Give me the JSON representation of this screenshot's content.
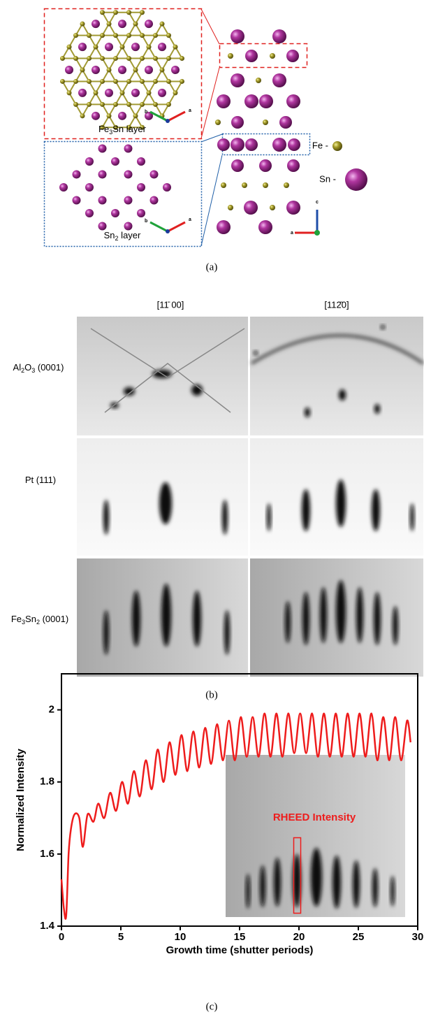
{
  "panel_a": {
    "caption": "(a)",
    "fe3sn_layer": [
      "Fe",
      "3",
      "Sn layer"
    ],
    "sn2_layer": [
      "Sn",
      "2",
      " layer"
    ],
    "legend": [
      "Fe -",
      "Sn -"
    ],
    "axes_top": [
      "b",
      "a"
    ],
    "axes_bottom": [
      "b",
      "a"
    ],
    "axes_side": [
      "c",
      "a"
    ]
  },
  "panel_b": {
    "caption": "(b)",
    "columns": [
      "[11̄ 00]",
      "[112̄0]"
    ],
    "rows": [
      [
        "Al",
        "2",
        "O",
        "3",
        " (0001)"
      ],
      [
        "Pt (111)"
      ],
      [
        "Fe",
        "3",
        "Sn",
        "2",
        " (0001)"
      ]
    ]
  },
  "panel_c": {
    "caption": "(c)"
  },
  "chart_data": {
    "type": "line",
    "xlabel": "Growth time (shutter periods)",
    "ylabel": "Normalized Intensity",
    "annotation": "RHEED Intensity",
    "color": "#ee1c1c",
    "x": [
      0,
      0.2,
      0.4,
      0.6,
      0.8,
      1.1,
      1.5,
      1.8,
      2.2,
      2.7,
      3.1,
      3.6,
      4.1,
      4.6,
      5.1,
      5.6,
      6.1,
      6.6,
      7.1,
      7.6,
      8.1,
      8.6,
      9.1,
      9.6,
      10.1,
      10.6,
      11.1,
      11.6,
      12.1,
      12.6,
      13.1,
      13.6,
      14.1,
      14.6,
      15.1,
      15.6,
      16.1,
      16.6,
      17.1,
      17.6,
      18.1,
      18.6,
      19.1,
      19.6,
      20.1,
      20.6,
      21.1,
      21.6,
      22.1,
      22.6,
      23.1,
      23.6,
      24.1,
      24.6,
      25.1,
      25.6,
      26.1,
      26.6,
      27.1,
      27.6,
      28.1,
      28.6,
      29.1,
      29.4
    ],
    "values": [
      1.53,
      1.45,
      1.43,
      1.6,
      1.67,
      1.71,
      1.7,
      1.62,
      1.71,
      1.69,
      1.74,
      1.7,
      1.77,
      1.72,
      1.8,
      1.74,
      1.83,
      1.76,
      1.86,
      1.78,
      1.89,
      1.8,
      1.91,
      1.82,
      1.93,
      1.83,
      1.94,
      1.84,
      1.95,
      1.85,
      1.96,
      1.86,
      1.97,
      1.86,
      1.98,
      1.87,
      1.98,
      1.87,
      1.99,
      1.87,
      1.99,
      1.87,
      1.99,
      1.88,
      1.99,
      1.88,
      1.99,
      1.87,
      1.99,
      1.87,
      1.99,
      1.87,
      1.99,
      1.87,
      1.99,
      1.87,
      1.99,
      1.86,
      1.98,
      1.86,
      1.98,
      1.86,
      1.97,
      1.91
    ],
    "xlim": [
      0,
      30
    ],
    "xticks": [
      0,
      5,
      10,
      15,
      20,
      25,
      30
    ],
    "ylim": [
      1.4,
      2.1
    ],
    "yticks": [
      1.4,
      1.6,
      1.8,
      2.0
    ]
  }
}
